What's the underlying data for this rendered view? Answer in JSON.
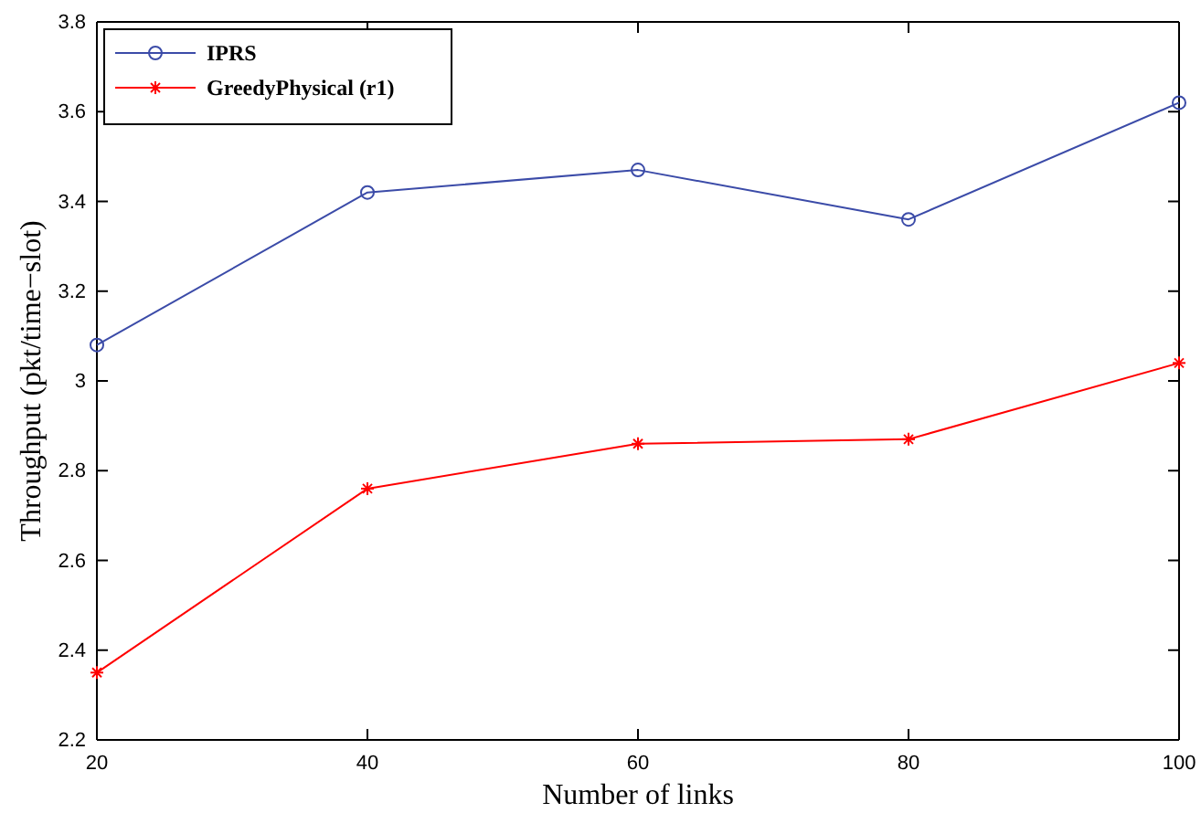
{
  "chart_data": {
    "type": "line",
    "xlabel": "Number of links",
    "ylabel": "Throughput  (pkt/time−slot)",
    "x": [
      20,
      40,
      60,
      80,
      100
    ],
    "series": [
      {
        "name": "IPRS",
        "color": "#3b4ba8",
        "marker": "circle",
        "values": [
          3.08,
          3.42,
          3.47,
          3.36,
          3.62
        ]
      },
      {
        "name": "GreedyPhysical (r1)",
        "color": "#ff0000",
        "marker": "cross",
        "values": [
          2.35,
          2.76,
          2.86,
          2.87,
          3.04
        ]
      }
    ],
    "xlim": [
      20,
      100
    ],
    "xticks": [
      20,
      40,
      60,
      80,
      100
    ],
    "ylim": [
      2.2,
      3.8
    ],
    "yticks": [
      {
        "value": 2.2,
        "label": "2.2"
      },
      {
        "value": 2.4,
        "label": "2.4"
      },
      {
        "value": 2.6,
        "label": "2.6"
      },
      {
        "value": 2.8,
        "label": "2.8"
      },
      {
        "value": 3,
        "label": "3"
      },
      {
        "value": 3.2,
        "label": "3.2"
      },
      {
        "value": 3.4,
        "label": "3.4"
      },
      {
        "value": 3.6,
        "label": "3.6"
      },
      {
        "value": 3.8,
        "label": "3.8"
      }
    ],
    "grid": false,
    "legend": "top left",
    "line_style": "solid"
  }
}
